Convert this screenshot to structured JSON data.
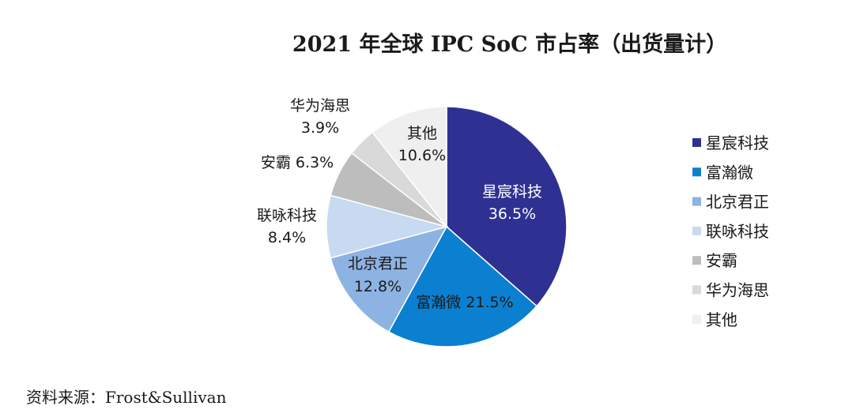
{
  "chart_data": {
    "type": "pie",
    "title": "2021 年全球 IPC SoC 市占率（出货量计）",
    "slices": [
      {
        "name": "星宸科技",
        "value": 36.5,
        "label": [
          "星宸科技",
          "36.5%"
        ],
        "color": "#2e3192",
        "label_color": "#ffffff"
      },
      {
        "name": "富瀚微",
        "value": 21.5,
        "label": [
          "富瀚微 21.5%"
        ],
        "color": "#0b80d1",
        "label_color": "#1a1a1a"
      },
      {
        "name": "北京君正",
        "value": 12.8,
        "label": [
          "北京君正",
          "12.8%"
        ],
        "color": "#8db3e2",
        "label_color": "#1a1a1a"
      },
      {
        "name": "联咏科技",
        "value": 8.4,
        "label": [
          "联咏科技",
          "8.4%"
        ],
        "color": "#c7daf1",
        "label_color": "#1a1a1a"
      },
      {
        "name": "安霸",
        "value": 6.3,
        "label": [
          "安霸 6.3%"
        ],
        "color": "#bdbdbd",
        "label_color": "#1a1a1a"
      },
      {
        "name": "华为海思",
        "value": 3.9,
        "label": [
          "华为海思",
          "3.9%"
        ],
        "color": "#d9d9d9",
        "label_color": "#1a1a1a"
      },
      {
        "name": "其他",
        "value": 10.6,
        "label": [
          "其他",
          "10.6%"
        ],
        "color": "#efefef",
        "label_color": "#1a1a1a"
      }
    ],
    "legend": {
      "position": "right",
      "entries": [
        "星宸科技",
        "富瀚微",
        "北京君正",
        "联咏科技",
        "安霸",
        "华为海思",
        "其他"
      ]
    }
  },
  "source_note": "资料来源：Frost&Sullivan"
}
